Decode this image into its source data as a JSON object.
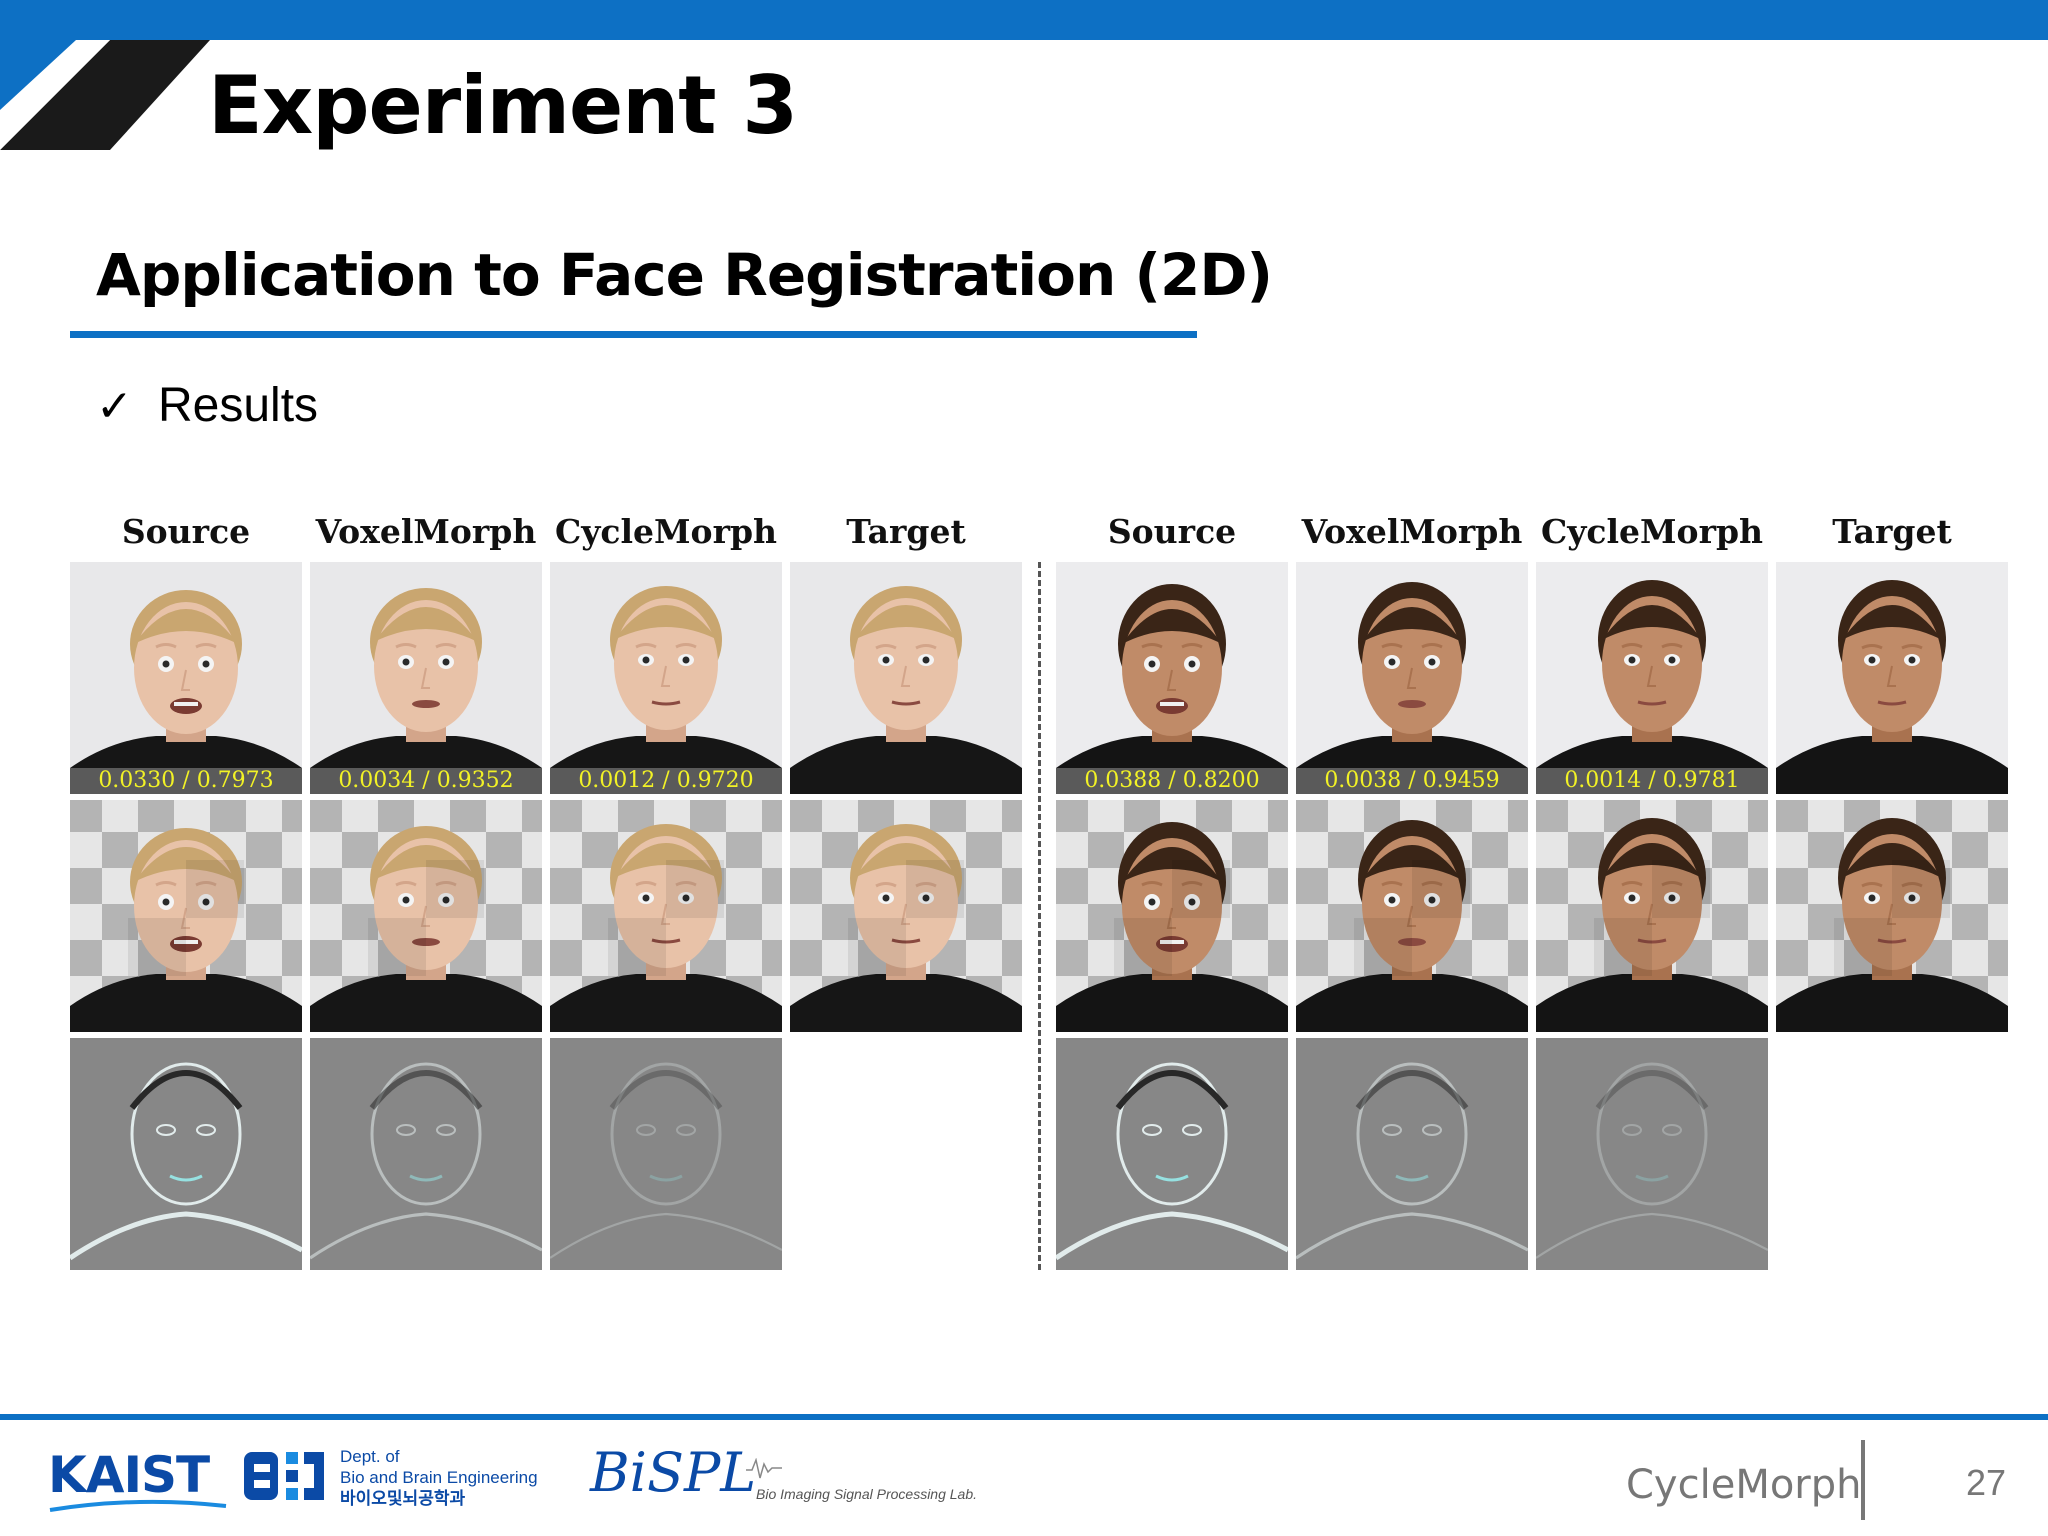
{
  "slide": {
    "title": "Experiment 3",
    "subtitle": "Application to Face Registration (2D)",
    "bullet": {
      "mark": "✓",
      "label": "Results"
    },
    "page_number": "27",
    "footer_name": "CycleMorph"
  },
  "figure": {
    "groups": [
      {
        "subject": "boy",
        "columns": [
          "Source",
          "VoxelMorph",
          "CycleMorph",
          "Target"
        ],
        "metrics": [
          "0.0330 / 0.7973",
          "0.0034 / 0.9352",
          "0.0012 / 0.9720"
        ]
      },
      {
        "subject": "woman",
        "columns": [
          "Source",
          "VoxelMorph",
          "CycleMorph",
          "Target"
        ],
        "metrics": [
          "0.0388 / 0.8200",
          "0.0038 / 0.9459",
          "0.0014 / 0.9781"
        ]
      }
    ]
  },
  "footer": {
    "kaist": "KAIST",
    "dept_line1": "Dept. of",
    "dept_line2": "Bio and Brain Engineering",
    "dept_korean": "바이오및뇌공학과",
    "bispl": "BiSPL",
    "bispl_sub": "Bio Imaging Signal Processing Lab."
  },
  "colors": {
    "accent": "#0d70c4",
    "metric_text": "#f2f226",
    "footer_gray": "#777777"
  }
}
